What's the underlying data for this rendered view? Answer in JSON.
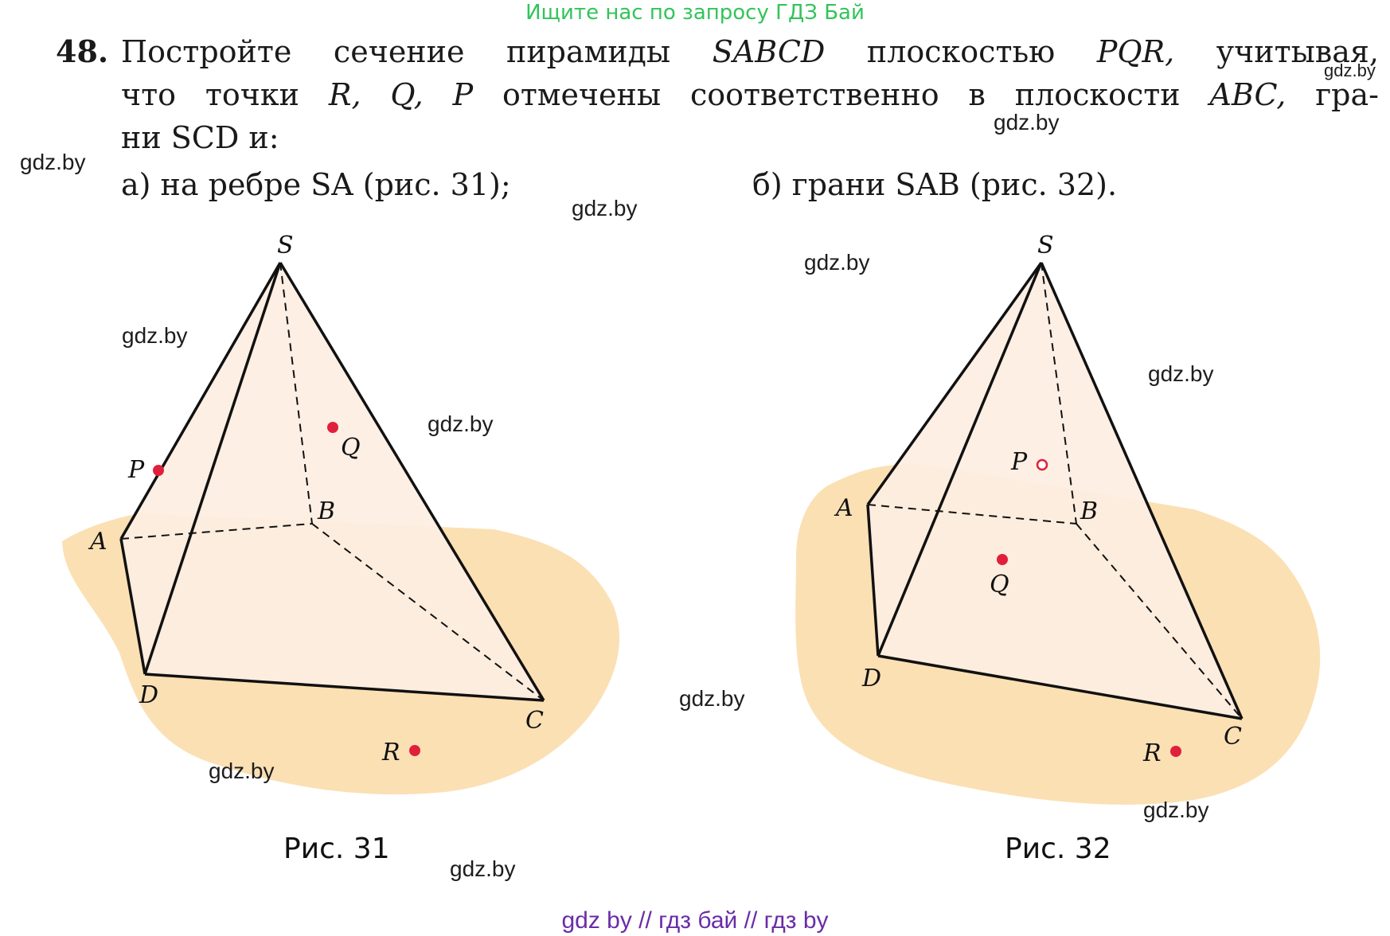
{
  "header": {
    "search_link": "Ищите нас по запросу ГДЗ Бай"
  },
  "problem": {
    "number": "48.",
    "line1_words": [
      "Постройте",
      "сечение",
      "пирамиды",
      "SABCD",
      "плоскостью",
      "PQR,",
      "учитывая,"
    ],
    "line2_words": [
      "что",
      "точки",
      "R,",
      "Q,",
      "P",
      "отмечены",
      "соответственно",
      "в",
      "плоскости",
      "ABC,",
      "гра-"
    ],
    "line3": "ни SCD и:",
    "part_a": "а) на ребре SA (рис. 31);",
    "part_b": "б) грани SAB (рис. 32)."
  },
  "figures": [
    {
      "caption": "Рис. 31",
      "vertex_labels": {
        "S": "S",
        "A": "A",
        "B": "B",
        "C": "C",
        "D": "D"
      },
      "point_labels": {
        "P": "P",
        "Q": "Q",
        "R": "R"
      }
    },
    {
      "caption": "Рис. 32",
      "vertex_labels": {
        "S": "S",
        "A": "A",
        "B": "B",
        "C": "C",
        "D": "D"
      },
      "point_labels": {
        "P": "P",
        "Q": "Q",
        "R": "R"
      }
    }
  ],
  "watermarks": [
    "gdz.by",
    "gdz.by",
    "gdz.by",
    "gdz.by",
    "gdz.by",
    "gdz.by",
    "gdz.by",
    "gdz.by",
    "gdz.by",
    "gdz.by",
    "gdz.by",
    "gdz.by"
  ],
  "footer": {
    "text": "gdz by  //  гдз бай  //  гдз by"
  },
  "colors": {
    "plane": "#fbe0b4",
    "pyramid_fill": "#fdeee2",
    "point": "#e0203a",
    "edge": "#111111",
    "search_link": "#33c45a",
    "footer": "#6a2ca8"
  }
}
